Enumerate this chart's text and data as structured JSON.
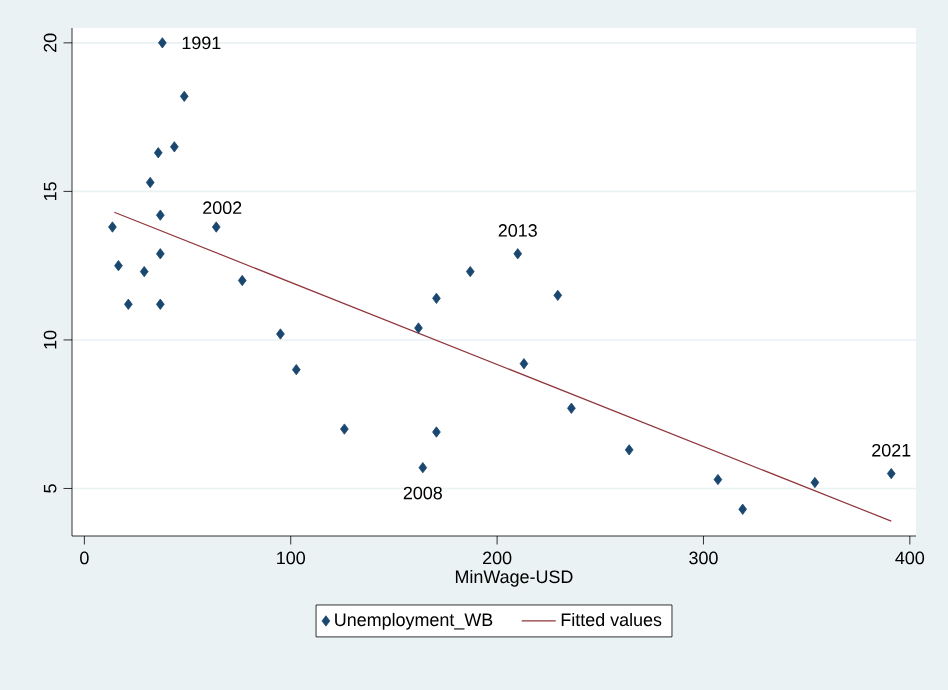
{
  "chart_data": {
    "type": "scatter",
    "xlabel": "MinWage-USD",
    "xlim": [
      -6,
      403
    ],
    "ylim": [
      3.4,
      20.5
    ],
    "xticks": [
      0,
      100,
      200,
      300,
      400
    ],
    "yticks": [
      5,
      10,
      15,
      20
    ],
    "grid": "y",
    "legend": "bottom",
    "series": [
      {
        "name": "Unemployment_WB",
        "color": "#1a476f",
        "marker": "diamond",
        "x": [
          37.8,
          48.4,
          43.6,
          35.8,
          31.9,
          36.8,
          13.6,
          36.8,
          16.5,
          29,
          21.3,
          36.8,
          63.9,
          76.5,
          95,
          102.7,
          126,
          161.9,
          170.6,
          170.6,
          164,
          187,
          210,
          229.4,
          213,
          236,
          264,
          307,
          319,
          354,
          391
        ],
        "values": [
          20.0,
          18.2,
          16.5,
          16.3,
          15.3,
          14.2,
          13.8,
          12.9,
          12.5,
          12.3,
          11.2,
          11.2,
          13.8,
          12.0,
          10.2,
          9.0,
          7.0,
          10.4,
          11.4,
          6.9,
          5.7,
          12.3,
          12.9,
          11.5,
          9.2,
          7.7,
          6.3,
          5.3,
          4.3,
          5.2,
          5.5
        ]
      },
      {
        "name": "Fitted values",
        "type": "line",
        "color": "#90353b",
        "marker": "none",
        "line_style": "solid",
        "x": [
          14.5,
          391
        ],
        "values": [
          14.3,
          3.9
        ]
      }
    ],
    "annotations": [
      {
        "text": "1991",
        "x": 37.8,
        "y": 20.0
      },
      {
        "text": "2002",
        "x": 63.9,
        "y": 13.8
      },
      {
        "text": "2013",
        "x": 210,
        "y": 12.9
      },
      {
        "text": "2008",
        "x": 164,
        "y": 5.7
      },
      {
        "text": "2021",
        "x": 391,
        "y": 5.5
      }
    ]
  }
}
